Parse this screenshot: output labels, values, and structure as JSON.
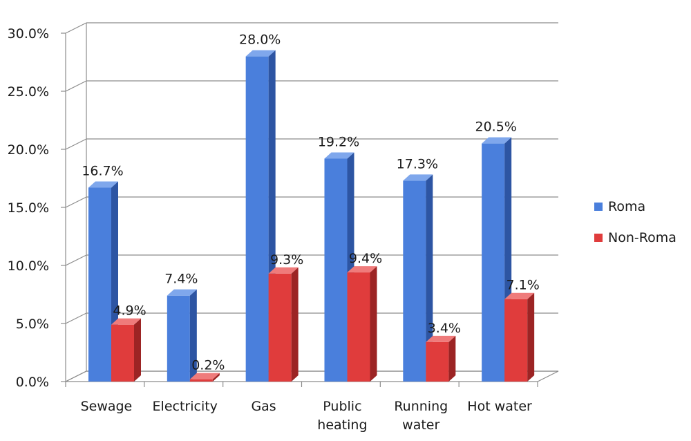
{
  "chart_data": {
    "type": "bar",
    "categories": [
      "Sewage",
      "Electricity",
      "Gas",
      "Public heating",
      "Running water",
      "Hot water"
    ],
    "category_lines": [
      [
        "Sewage"
      ],
      [
        "Electricity"
      ],
      [
        "Gas"
      ],
      [
        "Public",
        "heating"
      ],
      [
        "Running",
        "water"
      ],
      [
        "Hot water"
      ]
    ],
    "series": [
      {
        "name": "Roma",
        "values": [
          16.7,
          7.4,
          28.0,
          19.2,
          17.3,
          20.5
        ],
        "labels": [
          "16.7%",
          "7.4%",
          "28.0%",
          "19.2%",
          "17.3%",
          "20.5%"
        ]
      },
      {
        "name": "Non-Roma",
        "values": [
          4.9,
          0.2,
          9.3,
          9.4,
          3.4,
          7.1
        ],
        "labels": [
          "4.9%",
          "0.2%",
          "9.3%",
          "9.4%",
          "3.4%",
          "7.1%"
        ]
      }
    ],
    "yticks": [
      "0.0%",
      "5.0%",
      "10.0%",
      "15.0%",
      "20.0%",
      "25.0%",
      "30.0%"
    ],
    "ylim": [
      0,
      30
    ],
    "grid": true,
    "style": "3d-column",
    "legend_position": "right",
    "colors": {
      "Roma": {
        "front": "#4a7fdc",
        "side": "#2d55a3",
        "top": "#7fa7ec"
      },
      "Non-Roma": {
        "front": "#e03c3c",
        "side": "#9c2424",
        "top": "#ef7b7b"
      }
    }
  }
}
